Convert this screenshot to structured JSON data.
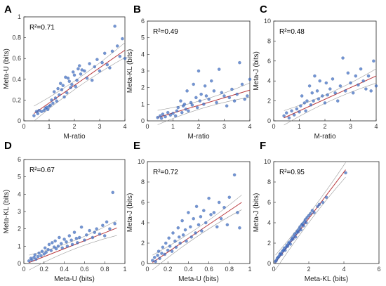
{
  "chart_data": [
    {
      "type": "scatter",
      "letter": "A",
      "r2": "R²=0.71",
      "xlabel": "M-ratio",
      "ylabel": "Meta-U (bits)",
      "xlim": [
        0,
        4
      ],
      "ylim": [
        0,
        1
      ],
      "xticks": [
        "0",
        "1",
        "2",
        "3",
        "4"
      ],
      "yticks": [
        "0",
        "0.2",
        "0.4",
        "0.6",
        "0.8",
        "1"
      ],
      "fit": [
        [
          0.4,
          0.07
        ],
        [
          4.0,
          0.68
        ]
      ],
      "x": [
        0.4,
        0.5,
        0.55,
        0.6,
        0.7,
        0.8,
        0.85,
        0.9,
        0.95,
        1.0,
        1.05,
        1.1,
        1.15,
        1.2,
        1.25,
        1.3,
        1.35,
        1.4,
        1.45,
        1.5,
        1.55,
        1.6,
        1.65,
        1.7,
        1.75,
        1.8,
        1.85,
        1.9,
        1.95,
        2.0,
        2.05,
        2.1,
        2.15,
        2.2,
        2.25,
        2.3,
        2.4,
        2.5,
        2.6,
        2.7,
        2.8,
        2.9,
        3.0,
        3.1,
        3.2,
        3.3,
        3.4,
        3.5,
        3.6,
        3.7,
        3.8,
        3.9,
        4.0
      ],
      "y": [
        0.05,
        0.09,
        0.07,
        0.1,
        0.09,
        0.1,
        0.12,
        0.13,
        0.11,
        0.14,
        0.15,
        0.2,
        0.17,
        0.28,
        0.22,
        0.19,
        0.31,
        0.25,
        0.36,
        0.3,
        0.34,
        0.23,
        0.42,
        0.27,
        0.41,
        0.38,
        0.32,
        0.35,
        0.47,
        0.44,
        0.33,
        0.39,
        0.5,
        0.53,
        0.45,
        0.49,
        0.48,
        0.41,
        0.55,
        0.39,
        0.52,
        0.59,
        0.48,
        0.56,
        0.65,
        0.54,
        0.51,
        0.67,
        0.91,
        0.72,
        0.62,
        0.79,
        0.6
      ]
    },
    {
      "type": "scatter",
      "letter": "B",
      "r2": "R²=0.49",
      "xlabel": "M-ratio",
      "ylabel": "Meta-KL (bits)",
      "xlim": [
        0,
        4
      ],
      "ylim": [
        0,
        6
      ],
      "xticks": [
        "0",
        "1",
        "2",
        "3",
        "4"
      ],
      "yticks": [
        "0",
        "1",
        "2",
        "3",
        "4",
        "5",
        "6"
      ],
      "fit": [
        [
          0.4,
          0.2
        ],
        [
          4.0,
          1.85
        ]
      ],
      "x": [
        0.4,
        0.5,
        0.55,
        0.6,
        0.7,
        0.8,
        0.9,
        1.0,
        1.1,
        1.15,
        1.2,
        1.3,
        1.35,
        1.4,
        1.45,
        1.5,
        1.55,
        1.6,
        1.7,
        1.75,
        1.8,
        1.9,
        1.95,
        2.0,
        2.05,
        2.1,
        2.2,
        2.25,
        2.3,
        2.4,
        2.5,
        2.6,
        2.7,
        2.8,
        2.9,
        3.0,
        3.1,
        3.2,
        3.3,
        3.4,
        3.5,
        3.6,
        3.7,
        3.8,
        3.9,
        4.0
      ],
      "y": [
        0.2,
        0.3,
        0.15,
        0.4,
        0.25,
        0.5,
        0.35,
        0.45,
        0.3,
        0.6,
        0.8,
        1.2,
        0.5,
        0.9,
        1.0,
        0.7,
        1.8,
        0.6,
        1.1,
        0.95,
        2.2,
        1.4,
        0.8,
        3.0,
        1.2,
        1.6,
        1.0,
        2.1,
        1.5,
        1.3,
        2.4,
        1.8,
        1.1,
        3.1,
        1.7,
        1.5,
        0.9,
        1.4,
        1.9,
        1.2,
        1.6,
        3.5,
        2.2,
        1.3,
        1.5,
        2.5
      ]
    },
    {
      "type": "scatter",
      "letter": "C",
      "r2": "R²=0.48",
      "xlabel": "M-ratio",
      "ylabel": "Meta-J (bits)",
      "xlim": [
        0,
        4
      ],
      "ylim": [
        0,
        10
      ],
      "xticks": [
        "0",
        "1",
        "2",
        "3",
        "4"
      ],
      "yticks": [
        "0",
        "2",
        "4",
        "6",
        "8",
        "10"
      ],
      "fit": [
        [
          0.4,
          0.3
        ],
        [
          4.0,
          4.5
        ]
      ],
      "x": [
        0.4,
        0.5,
        0.6,
        0.7,
        0.8,
        0.9,
        1.0,
        1.05,
        1.1,
        1.2,
        1.25,
        1.3,
        1.4,
        1.45,
        1.5,
        1.55,
        1.6,
        1.7,
        1.75,
        1.8,
        1.9,
        2.0,
        2.05,
        2.1,
        2.2,
        2.3,
        2.4,
        2.5,
        2.6,
        2.7,
        2.8,
        2.9,
        3.0,
        3.1,
        3.2,
        3.3,
        3.4,
        3.5,
        3.6,
        3.7,
        3.8,
        3.9,
        4.0
      ],
      "y": [
        0.5,
        0.8,
        0.3,
        1.0,
        0.6,
        1.2,
        0.9,
        1.5,
        2.5,
        1.8,
        1.0,
        2.0,
        3.5,
        1.6,
        2.8,
        2.0,
        4.5,
        3.0,
        2.2,
        4.0,
        2.5,
        1.8,
        3.8,
        2.6,
        3.2,
        4.2,
        2.8,
        2.0,
        3.5,
        6.3,
        3.0,
        4.8,
        3.8,
        2.8,
        4.5,
        3.6,
        5.2,
        4.0,
        3.2,
        4.5,
        3.0,
        6.0,
        3.5
      ]
    },
    {
      "type": "scatter",
      "letter": "D",
      "r2": "R²=0.67",
      "xlabel": "Meta-U (bits)",
      "ylabel": "Meta-KL (bits)",
      "xlim": [
        0,
        1
      ],
      "ylim": [
        0,
        6
      ],
      "xticks": [
        "0",
        "0.2",
        "0.4",
        "0.6",
        "0.8",
        "1"
      ],
      "yticks": [
        "0",
        "1",
        "2",
        "3",
        "4",
        "5",
        "6"
      ],
      "fit": [
        [
          0.05,
          0.05
        ],
        [
          0.92,
          2.05
        ]
      ],
      "x": [
        0.05,
        0.07,
        0.08,
        0.1,
        0.11,
        0.12,
        0.14,
        0.15,
        0.17,
        0.18,
        0.2,
        0.21,
        0.22,
        0.24,
        0.25,
        0.27,
        0.28,
        0.3,
        0.31,
        0.32,
        0.34,
        0.35,
        0.37,
        0.38,
        0.4,
        0.42,
        0.43,
        0.45,
        0.47,
        0.48,
        0.5,
        0.52,
        0.53,
        0.55,
        0.57,
        0.6,
        0.62,
        0.65,
        0.68,
        0.7,
        0.72,
        0.75,
        0.78,
        0.8,
        0.82,
        0.85,
        0.88,
        0.9
      ],
      "y": [
        0.15,
        0.3,
        0.2,
        0.35,
        0.5,
        0.25,
        0.4,
        0.6,
        0.45,
        0.7,
        0.55,
        0.9,
        0.65,
        0.8,
        1.1,
        0.75,
        1.2,
        0.95,
        1.3,
        0.85,
        1.0,
        1.5,
        1.15,
        0.9,
        1.4,
        1.25,
        1.0,
        1.6,
        1.35,
        1.1,
        1.8,
        1.45,
        1.2,
        1.5,
        2.1,
        1.35,
        1.65,
        1.9,
        1.5,
        1.8,
        2.0,
        1.7,
        2.2,
        1.6,
        2.4,
        2.0,
        4.1,
        2.3
      ]
    },
    {
      "type": "scatter",
      "letter": "E",
      "r2": "R²=0.72",
      "xlabel": "Meta-U (bits)",
      "ylabel": "Meta-J (bits)",
      "xlim": [
        0,
        1
      ],
      "ylim": [
        0,
        10
      ],
      "xticks": [
        "0",
        "0.2",
        "0.4",
        "0.6",
        "0.8",
        "1"
      ],
      "yticks": [
        "0",
        "2",
        "4",
        "6",
        "8",
        "10"
      ],
      "fit": [
        [
          0.05,
          0.1
        ],
        [
          0.92,
          6.0
        ]
      ],
      "x": [
        0.05,
        0.07,
        0.08,
        0.1,
        0.11,
        0.12,
        0.14,
        0.15,
        0.17,
        0.18,
        0.2,
        0.21,
        0.22,
        0.24,
        0.25,
        0.27,
        0.28,
        0.3,
        0.31,
        0.32,
        0.34,
        0.35,
        0.37,
        0.38,
        0.4,
        0.42,
        0.43,
        0.45,
        0.47,
        0.48,
        0.5,
        0.52,
        0.53,
        0.55,
        0.57,
        0.6,
        0.62,
        0.65,
        0.68,
        0.7,
        0.72,
        0.75,
        0.78,
        0.8,
        0.85,
        0.88,
        0.9
      ],
      "y": [
        0.3,
        0.6,
        0.2,
        0.8,
        1.2,
        0.5,
        1.0,
        1.6,
        0.9,
        2.0,
        1.3,
        2.5,
        1.7,
        1.2,
        3.0,
        2.2,
        1.6,
        3.5,
        2.6,
        2.0,
        4.2,
        2.8,
        3.3,
        2.2,
        5.0,
        3.6,
        2.6,
        4.4,
        3.0,
        5.6,
        3.8,
        4.6,
        3.2,
        5.2,
        4.0,
        6.4,
        4.8,
        5.0,
        3.6,
        6.0,
        4.4,
        5.5,
        3.8,
        6.5,
        8.7,
        5.0,
        3.5
      ]
    },
    {
      "type": "scatter",
      "letter": "F",
      "r2": "R²=0.95",
      "xlabel": "Meta-KL (bits)",
      "ylabel": "Meta-J (bits)",
      "xlim": [
        0,
        6
      ],
      "ylim": [
        0,
        10
      ],
      "xticks": [
        "0",
        "2",
        "4",
        "6"
      ],
      "yticks": [
        "0",
        "2",
        "4",
        "6",
        "8",
        "10"
      ],
      "fit": [
        [
          0.1,
          0.1
        ],
        [
          4.1,
          9.2
        ]
      ],
      "x": [
        0.1,
        0.15,
        0.2,
        0.25,
        0.3,
        0.35,
        0.4,
        0.45,
        0.5,
        0.55,
        0.6,
        0.65,
        0.7,
        0.75,
        0.8,
        0.85,
        0.9,
        0.95,
        1.0,
        1.05,
        1.1,
        1.15,
        1.2,
        1.25,
        1.3,
        1.35,
        1.4,
        1.45,
        1.5,
        1.55,
        1.6,
        1.65,
        1.7,
        1.75,
        1.8,
        1.85,
        1.9,
        2.0,
        2.1,
        2.2,
        2.3,
        2.5,
        2.6,
        2.8,
        3.0,
        4.1
      ],
      "y": [
        0.2,
        0.3,
        0.5,
        0.6,
        0.7,
        0.9,
        1.0,
        0.9,
        1.2,
        1.3,
        1.5,
        1.3,
        1.6,
        1.8,
        1.7,
        2.0,
        2.1,
        1.9,
        2.3,
        2.5,
        2.4,
        2.7,
        2.9,
        2.6,
        3.0,
        3.2,
        3.1,
        3.4,
        3.6,
        3.3,
        3.8,
        3.9,
        3.7,
        4.1,
        4.3,
        4.0,
        4.5,
        4.7,
        4.9,
        5.2,
        5.0,
        5.6,
        5.8,
        6.0,
        6.5,
        8.9
      ]
    }
  ]
}
